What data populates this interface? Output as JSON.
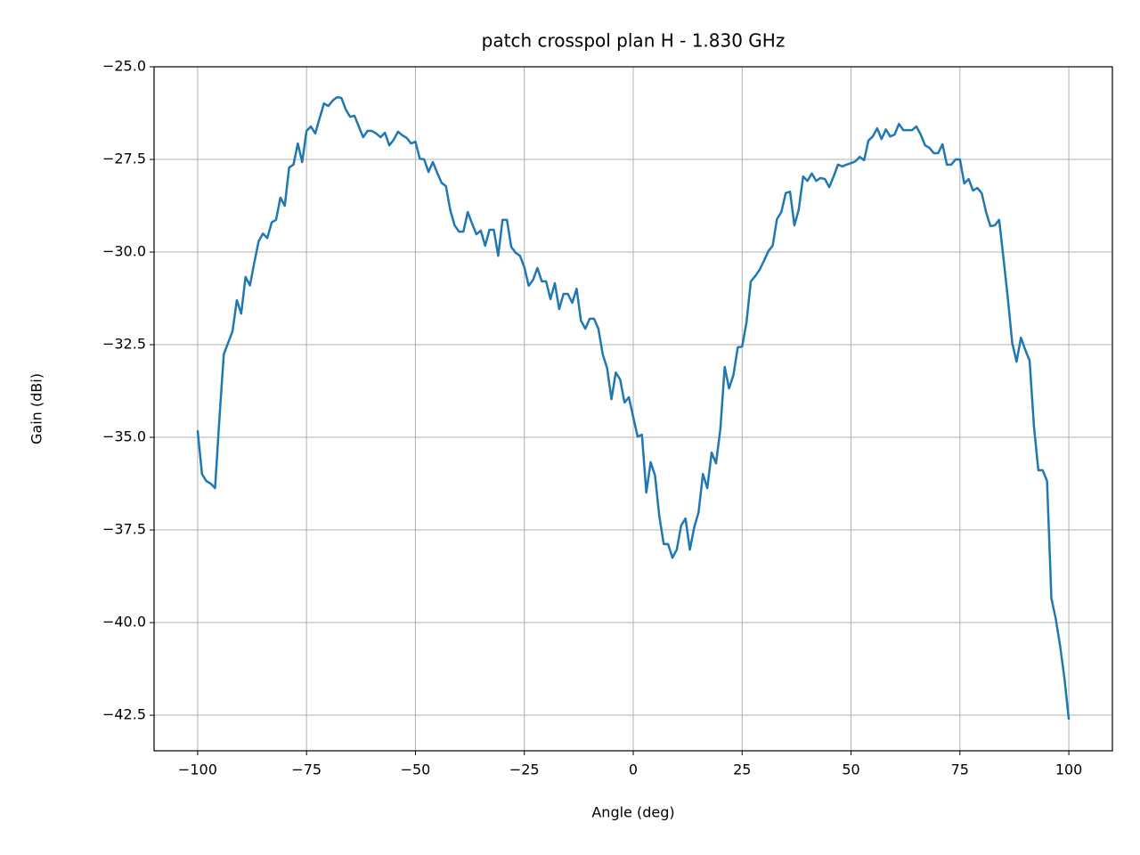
{
  "chart_data": {
    "type": "line",
    "title": "patch crosspol plan H - 1.830 GHz",
    "x_label": "Angle (deg)",
    "y_label": "Gain (dBi)",
    "xlim": [
      -110,
      110
    ],
    "ylim": [
      -43.46,
      -25
    ],
    "xticks": [
      {
        "value": -100,
        "label": "−100"
      },
      {
        "value": -75,
        "label": "−75"
      },
      {
        "value": -50,
        "label": "−50"
      },
      {
        "value": -25,
        "label": "−25"
      },
      0,
      25,
      50,
      75,
      100
    ],
    "yticks": [
      {
        "value": -25,
        "label": "−25.0"
      },
      {
        "value": -27.5,
        "label": "−27.5"
      },
      {
        "value": -30,
        "label": "−30.0"
      },
      {
        "value": -32.5,
        "label": "−32.5"
      },
      {
        "value": -35,
        "label": "−35.0"
      },
      {
        "value": -37.5,
        "label": "−37.5"
      },
      {
        "value": -40,
        "label": "−40.0"
      },
      {
        "value": -42.5,
        "label": "−42.5"
      }
    ],
    "grid": true,
    "x": [
      -100,
      -99,
      -98,
      -97,
      -96,
      -95,
      -94,
      -93,
      -92,
      -91,
      -90,
      -89,
      -88,
      -87,
      -86,
      -85,
      -84,
      -83,
      -82,
      -81,
      -80,
      -79,
      -78,
      -77,
      -76,
      -75,
      -74,
      -73,
      -72,
      -71,
      -70,
      -69,
      -68,
      -67,
      -66,
      -65,
      -64,
      -63,
      -62,
      -61,
      -60,
      -59,
      -58,
      -57,
      -56,
      -55,
      -54,
      -53,
      -52,
      -51,
      -50,
      -49,
      -48,
      -47,
      -46,
      -45,
      -44,
      -43,
      -42,
      -41,
      -40,
      -39,
      -38,
      -37,
      -36,
      -35,
      -34,
      -33,
      -32,
      -31,
      -30,
      -29,
      -28,
      -27,
      -26,
      -25,
      -24,
      -23,
      -22,
      -21,
      -20,
      -19,
      -18,
      -17,
      -16,
      -15,
      -14,
      -13,
      -12,
      -11,
      -10,
      -9,
      -8,
      -7,
      -6,
      -5,
      -4,
      -3,
      -2,
      -1,
      0,
      1,
      2,
      3,
      4,
      5,
      6,
      7,
      8,
      9,
      10,
      11,
      12,
      13,
      14,
      15,
      16,
      17,
      18,
      19,
      20,
      21,
      22,
      23,
      24,
      25,
      26,
      27,
      28,
      29,
      30,
      31,
      32,
      33,
      34,
      35,
      36,
      37,
      38,
      39,
      40,
      41,
      42,
      43,
      44,
      45,
      46,
      47,
      48,
      49,
      50,
      51,
      52,
      53,
      54,
      55,
      56,
      57,
      58,
      59,
      60,
      61,
      62,
      63,
      64,
      65,
      66,
      67,
      68,
      69,
      70,
      71,
      72,
      73,
      74,
      75,
      76,
      77,
      78,
      79,
      80,
      81,
      82,
      83,
      84,
      85,
      86,
      87,
      88,
      89,
      90,
      91,
      92,
      93,
      94,
      95,
      96,
      97,
      98,
      99,
      100
    ],
    "series": [
      {
        "color": "#1f77b4",
        "values": [
          -34.81,
          -35.99,
          -36.18,
          -36.25,
          -36.37,
          -34.5,
          -32.76,
          -32.45,
          -32.14,
          -31.3,
          -31.66,
          -30.67,
          -30.9,
          -30.29,
          -29.71,
          -29.5,
          -29.62,
          -29.2,
          -29.13,
          -28.53,
          -28.75,
          -27.72,
          -27.64,
          -27.07,
          -27.57,
          -26.73,
          -26.61,
          -26.8,
          -26.39,
          -25.99,
          -26.06,
          -25.91,
          -25.82,
          -25.84,
          -26.15,
          -26.35,
          -26.32,
          -26.61,
          -26.9,
          -26.73,
          -26.73,
          -26.8,
          -26.9,
          -26.78,
          -27.12,
          -26.97,
          -26.75,
          -26.85,
          -26.92,
          -27.07,
          -27.02,
          -27.48,
          -27.5,
          -27.84,
          -27.57,
          -27.86,
          -28.13,
          -28.22,
          -28.87,
          -29.28,
          -29.45,
          -29.45,
          -28.92,
          -29.23,
          -29.52,
          -29.42,
          -29.83,
          -29.4,
          -29.4,
          -30.1,
          -29.13,
          -29.13,
          -29.86,
          -30.02,
          -30.1,
          -30.41,
          -30.91,
          -30.75,
          -30.43,
          -30.79,
          -30.79,
          -31.27,
          -30.84,
          -31.54,
          -31.13,
          -31.13,
          -31.37,
          -30.99,
          -31.85,
          -32.07,
          -31.8,
          -31.8,
          -32.07,
          -32.76,
          -33.13,
          -33.97,
          -33.25,
          -33.44,
          -34.06,
          -33.92,
          -34.45,
          -34.98,
          -34.93,
          -36.49,
          -35.67,
          -36.03,
          -37.14,
          -37.88,
          -37.88,
          -38.25,
          -38.03,
          -37.38,
          -37.19,
          -38.03,
          -37.43,
          -37.02,
          -35.99,
          -36.37,
          -35.41,
          -35.7,
          -34.78,
          -33.1,
          -33.68,
          -33.32,
          -32.57,
          -32.55,
          -31.9,
          -30.79,
          -30.65,
          -30.48,
          -30.24,
          -29.98,
          -29.83,
          -29.11,
          -28.92,
          -28.41,
          -28.37,
          -29.28,
          -28.85,
          -27.96,
          -28.08,
          -27.88,
          -28.08,
          -28.0,
          -28.03,
          -28.25,
          -27.96,
          -27.64,
          -27.69,
          -27.64,
          -27.6,
          -27.55,
          -27.43,
          -27.52,
          -26.99,
          -26.88,
          -26.66,
          -26.95,
          -26.69,
          -26.88,
          -26.83,
          -26.54,
          -26.71,
          -26.71,
          -26.71,
          -26.61,
          -26.83,
          -27.12,
          -27.19,
          -27.33,
          -27.33,
          -27.09,
          -27.64,
          -27.64,
          -27.5,
          -27.5,
          -28.15,
          -28.03,
          -28.34,
          -28.27,
          -28.41,
          -28.92,
          -29.3,
          -29.28,
          -29.13,
          -30.17,
          -31.25,
          -32.45,
          -32.96,
          -32.31,
          -32.64,
          -32.93,
          -34.71,
          -35.89,
          -35.89,
          -36.18,
          -39.35,
          -39.9,
          -40.63,
          -41.51,
          -42.62
        ]
      }
    ]
  }
}
